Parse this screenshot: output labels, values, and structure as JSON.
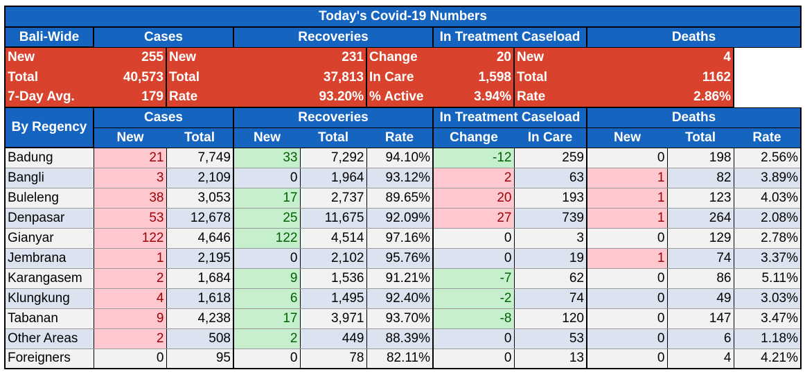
{
  "title": "Today's Covid-19 Numbers",
  "groups": {
    "cases": "Cases",
    "recoveries": "Recoveries",
    "treatment": "In Treatment Caseload",
    "deaths": "Deaths"
  },
  "bali_wide": {
    "label": "Bali-Wide",
    "rows": [
      {
        "c_lab": "New",
        "c_val": "255",
        "r_lab": "New",
        "r_val": "231",
        "t_lab": "Change",
        "t_val": "20",
        "d_lab": "New",
        "d_val": "4"
      },
      {
        "c_lab": "Total",
        "c_val": "40,573",
        "r_lab": "Total",
        "r_val": "37,813",
        "t_lab": "In Care",
        "t_val": "1,598",
        "d_lab": "Total",
        "d_val": "1162"
      },
      {
        "c_lab": "7-Day Avg.",
        "c_val": "179",
        "r_lab": "Rate",
        "r_val": "93.20%",
        "t_lab": "% Active",
        "t_val": "3.94%",
        "d_lab": "Rate",
        "d_val": "2.86%"
      }
    ]
  },
  "by_regency": {
    "label": "By Regency",
    "subheaders": [
      "New",
      "Total",
      "New",
      "Total",
      "Rate",
      "Change",
      "In Care",
      "New",
      "Total",
      "Rate"
    ],
    "rows": [
      {
        "name": "Badung",
        "cn": "21",
        "ct": "7,749",
        "rn": "33",
        "rt": "7,292",
        "rr": "94.10%",
        "tc": "-12",
        "ti": "259",
        "dn": "0",
        "dt": "198",
        "dr": "2.56%"
      },
      {
        "name": "Bangli",
        "cn": "3",
        "ct": "2,109",
        "rn": "0",
        "rt": "1,964",
        "rr": "93.12%",
        "tc": "2",
        "ti": "63",
        "dn": "1",
        "dt": "82",
        "dr": "3.89%"
      },
      {
        "name": "Buleleng",
        "cn": "38",
        "ct": "3,053",
        "rn": "17",
        "rt": "2,737",
        "rr": "89.65%",
        "tc": "20",
        "ti": "193",
        "dn": "1",
        "dt": "123",
        "dr": "4.03%"
      },
      {
        "name": "Denpasar",
        "cn": "53",
        "ct": "12,678",
        "rn": "25",
        "rt": "11,675",
        "rr": "92.09%",
        "tc": "27",
        "ti": "739",
        "dn": "1",
        "dt": "264",
        "dr": "2.08%"
      },
      {
        "name": "Gianyar",
        "cn": "122",
        "ct": "4,646",
        "rn": "122",
        "rt": "4,514",
        "rr": "97.16%",
        "tc": "0",
        "ti": "3",
        "dn": "0",
        "dt": "129",
        "dr": "2.78%"
      },
      {
        "name": "Jembrana",
        "cn": "1",
        "ct": "2,195",
        "rn": "0",
        "rt": "2,102",
        "rr": "95.76%",
        "tc": "0",
        "ti": "19",
        "dn": "1",
        "dt": "74",
        "dr": "3.37%"
      },
      {
        "name": "Karangasem",
        "cn": "2",
        "ct": "1,684",
        "rn": "9",
        "rt": "1,536",
        "rr": "91.21%",
        "tc": "-7",
        "ti": "62",
        "dn": "0",
        "dt": "86",
        "dr": "5.11%"
      },
      {
        "name": "Klungkung",
        "cn": "4",
        "ct": "1,618",
        "rn": "6",
        "rt": "1,495",
        "rr": "92.40%",
        "tc": "-2",
        "ti": "74",
        "dn": "0",
        "dt": "49",
        "dr": "3.03%"
      },
      {
        "name": "Tabanan",
        "cn": "9",
        "ct": "4,238",
        "rn": "17",
        "rt": "3,971",
        "rr": "93.70%",
        "tc": "-8",
        "ti": "120",
        "dn": "0",
        "dt": "147",
        "dr": "3.47%"
      },
      {
        "name": "Other Areas",
        "cn": "2",
        "ct": "508",
        "rn": "2",
        "rt": "449",
        "rr": "88.39%",
        "tc": "0",
        "ti": "53",
        "dn": "0",
        "dt": "6",
        "dr": "1.18%"
      },
      {
        "name": "Foreigners",
        "cn": "0",
        "ct": "95",
        "rn": "0",
        "rt": "78",
        "rr": "82.11%",
        "tc": "0",
        "ti": "13",
        "dn": "0",
        "dt": "4",
        "dr": "4.21%"
      }
    ]
  },
  "colors": {
    "header_blue": "#1565c0",
    "bali_red": "#d9432e",
    "increase_fill": "#ffc7ce",
    "increase_text": "#9c0006",
    "decrease_fill": "#c6efce",
    "decrease_text": "#006100",
    "row_light": "#f2f2f2",
    "row_blue": "#dce3f0"
  }
}
